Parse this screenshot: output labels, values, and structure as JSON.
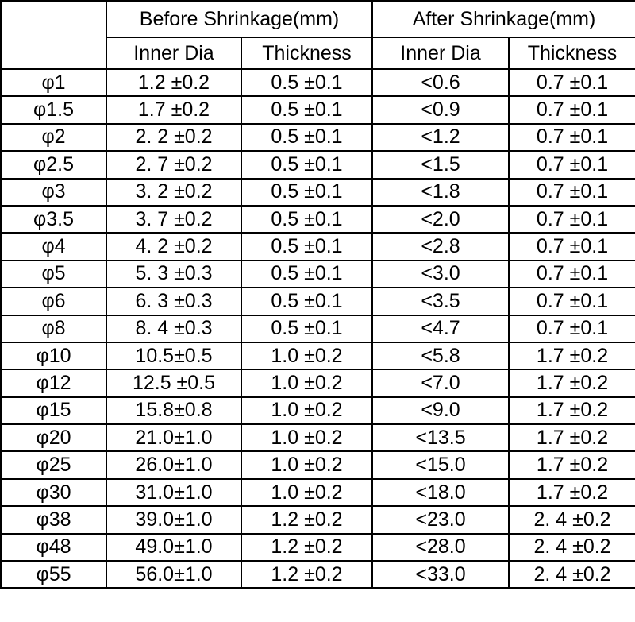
{
  "header": {
    "groups": [
      "Before Shrinkage(mm)",
      "After Shrinkage(mm)"
    ],
    "columns": [
      "Inner Dia",
      "Thickness",
      "Inner Dia",
      "Thickness"
    ]
  },
  "table": {
    "rows": [
      [
        "φ1",
        "1.2 ±0.2",
        "0.5 ±0.1",
        "<0.6",
        "0.7 ±0.1"
      ],
      [
        "φ1.5",
        "1.7 ±0.2",
        "0.5 ±0.1",
        "<0.9",
        "0.7 ±0.1"
      ],
      [
        "φ2",
        "2. 2 ±0.2",
        "0.5 ±0.1",
        "<1.2",
        "0.7 ±0.1"
      ],
      [
        "φ2.5",
        "2. 7 ±0.2",
        "0.5 ±0.1",
        "<1.5",
        "0.7 ±0.1"
      ],
      [
        "φ3",
        "3. 2 ±0.2",
        "0.5 ±0.1",
        "<1.8",
        "0.7 ±0.1"
      ],
      [
        "φ3.5",
        "3. 7 ±0.2",
        "0.5 ±0.1",
        "<2.0",
        "0.7 ±0.1"
      ],
      [
        "φ4",
        "4. 2 ±0.2",
        "0.5 ±0.1",
        "<2.8",
        "0.7 ±0.1"
      ],
      [
        "φ5",
        "5. 3 ±0.3",
        "0.5 ±0.1",
        "<3.0",
        "0.7 ±0.1"
      ],
      [
        "φ6",
        "6. 3 ±0.3",
        "0.5 ±0.1",
        "<3.5",
        "0.7 ±0.1"
      ],
      [
        "φ8",
        "8. 4 ±0.3",
        "0.5 ±0.1",
        "<4.7",
        "0.7 ±0.1"
      ],
      [
        "φ10",
        "10.5±0.5",
        "1.0 ±0.2",
        "<5.8",
        "1.7 ±0.2"
      ],
      [
        "φ12",
        "12.5 ±0.5",
        "1.0 ±0.2",
        "<7.0",
        "1.7 ±0.2"
      ],
      [
        "φ15",
        "15.8±0.8",
        "1.0 ±0.2",
        "<9.0",
        "1.7 ±0.2"
      ],
      [
        "φ20",
        "21.0±1.0",
        "1.0 ±0.2",
        "<13.5",
        "1.7 ±0.2"
      ],
      [
        "φ25",
        "26.0±1.0",
        "1.0 ±0.2",
        "<15.0",
        "1.7 ±0.2"
      ],
      [
        "φ30",
        "31.0±1.0",
        "1.0 ±0.2",
        "<18.0",
        "1.7 ±0.2"
      ],
      [
        "φ38",
        "39.0±1.0",
        "1.2 ±0.2",
        "<23.0",
        "2. 4 ±0.2"
      ],
      [
        "φ48",
        "49.0±1.0",
        "1.2 ±0.2",
        "<28.0",
        "2. 4 ±0.2"
      ],
      [
        "φ55",
        "56.0±1.0",
        "1.2 ±0.2",
        "<33.0",
        "2. 4 ±0.2"
      ]
    ]
  }
}
